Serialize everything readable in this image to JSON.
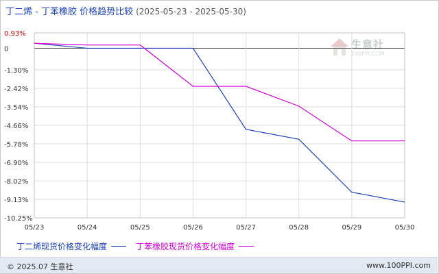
{
  "chart_data": {
    "type": "line",
    "title": "丁二烯 - 丁苯橡胶 价格趋势比较",
    "date_range": "(2025-05-23 - 2025-05-30)",
    "categories": [
      "05/23",
      "05/24",
      "05/25",
      "05/26",
      "05/27",
      "05/28",
      "05/29",
      "05/30"
    ],
    "y_ticks": [
      "0.93%",
      "0",
      "-1.30%",
      "-2.42%",
      "-3.54%",
      "-4.66%",
      "-5.78%",
      "-6.90%",
      "-8.02%",
      "-9.13%",
      "-10.25%"
    ],
    "ylim": [
      -10.25,
      0.93
    ],
    "grid": true,
    "legend_position": "bottom",
    "series": [
      {
        "name": "丁二烯现货价格变化幅度",
        "color": "#1a3fb5",
        "values": [
          0.3,
          0.0,
          0.0,
          0.0,
          -4.9,
          -5.5,
          -8.7,
          -9.3
        ]
      },
      {
        "name": "丁苯橡胶现货价格变化幅度",
        "color": "#d400d4",
        "values": [
          0.3,
          0.2,
          0.2,
          -2.3,
          -2.3,
          -3.5,
          -5.6,
          -5.6
        ]
      }
    ]
  },
  "footer": {
    "left": "© 2025.07 生意社",
    "right": "www.100PPI.com"
  },
  "watermark": {
    "name": "生意社",
    "url": "100PPI.COM"
  }
}
